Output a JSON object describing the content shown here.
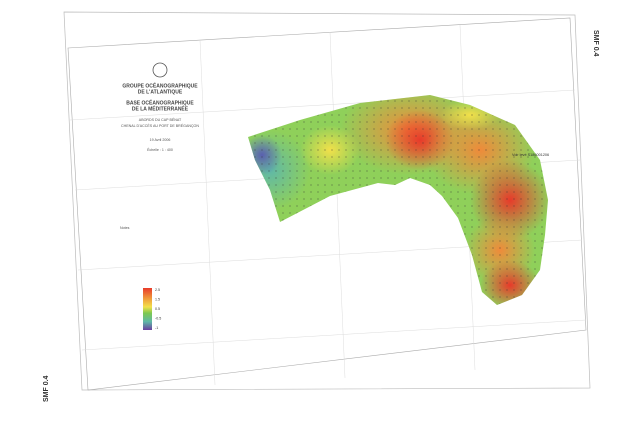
{
  "header": {
    "org1": "GROUPE OCÉANOGRAPHIQUE",
    "org2": "DE L'ATLANTIQUE",
    "base1": "BASE OCÉANOGRAPHIQUE",
    "base2": "DE LA MÉDITERRANÉE",
    "area": "ABORDS DU CAP BÉNAT",
    "channel": "CHENAL D'ACCÈS AU PORT DE BRÉGANÇON",
    "date": "19 Avril 2006",
    "scale": "Échelle : 1 : 400",
    "notes_title": "Notes"
  },
  "margin": {
    "top_right": "SMF 0.4",
    "bottom_left": "SMF 0.4"
  },
  "map": {
    "reference": "Voir levé S186001206"
  },
  "legend": {
    "labels": [
      "2.5",
      "1.5",
      "0.5",
      "-0.5",
      "-1"
    ]
  }
}
